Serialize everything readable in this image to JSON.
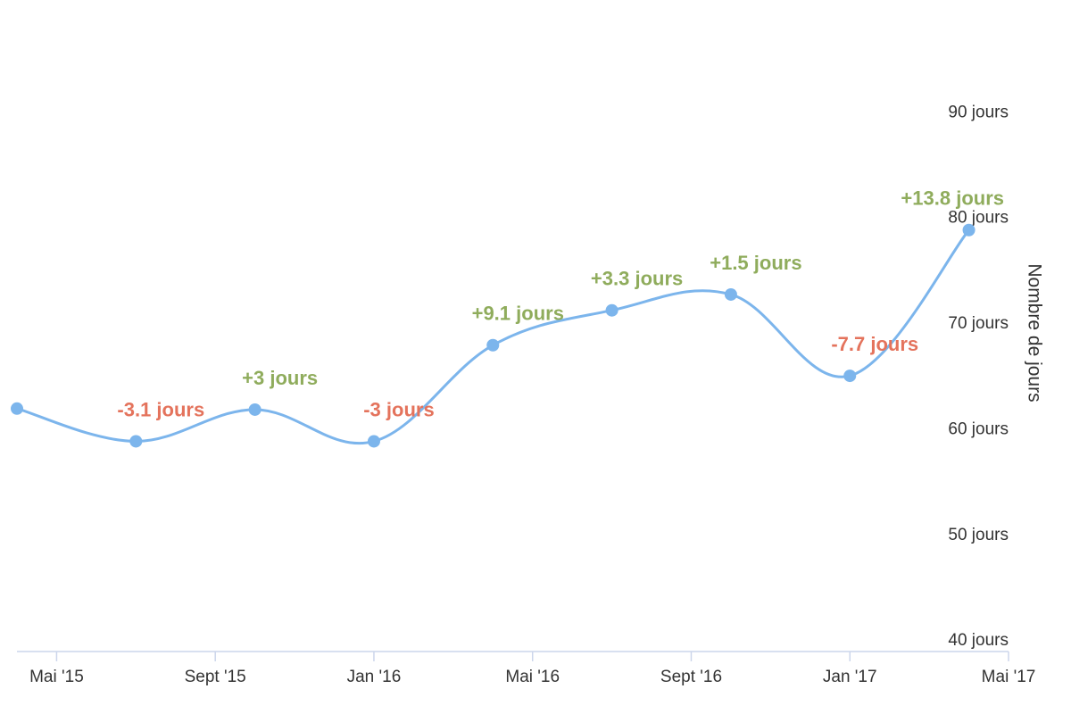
{
  "chart_data": {
    "type": "line",
    "x": [
      "2015-04",
      "2015-07",
      "2015-10",
      "2016-01",
      "2016-04",
      "2016-07",
      "2016-10",
      "2017-01",
      "2017-04"
    ],
    "series": [
      {
        "color": "#7cb5ec",
        "values": [
          62.0,
          58.9,
          61.9,
          58.9,
          68.0,
          71.3,
          72.8,
          65.1,
          78.9
        ]
      }
    ],
    "changes": {
      "values": [
        null,
        -3.1,
        3,
        -3,
        9.1,
        3.3,
        1.5,
        -7.7,
        13.8
      ],
      "value_labels": [
        null,
        "-3.1 jours",
        "+3 jours",
        "-3 jours",
        "+9.1 jours",
        "+3.3 jours",
        "+1.5 jours",
        "-7.7 jours",
        "+13.8 jours"
      ],
      "positive_color": "#8fac5c",
      "negative_color": "#e4735c"
    },
    "xlim": [
      "2015-04",
      "2017-05"
    ],
    "xticks": [
      {
        "value": "2015-05",
        "label": "Mai '15"
      },
      {
        "value": "2015-09",
        "label": "Sept '15"
      },
      {
        "value": "2016-01",
        "label": "Jan '16"
      },
      {
        "value": "2016-05",
        "label": "Mai '16"
      },
      {
        "value": "2016-09",
        "label": "Sept '16"
      },
      {
        "value": "2017-01",
        "label": "Jan '17"
      },
      {
        "value": "2017-05",
        "label": "Mai '17"
      }
    ],
    "ylim": [
      39,
      100
    ],
    "yticks": [
      {
        "value": 40,
        "label": "40 jours"
      },
      {
        "value": 50,
        "label": "50 jours"
      },
      {
        "value": 60,
        "label": "60 jours"
      },
      {
        "value": 70,
        "label": "70 jours"
      },
      {
        "value": 80,
        "label": "80 jours"
      },
      {
        "value": 90,
        "label": "90 jours"
      }
    ],
    "y_axis_label": "Nombre de jours",
    "y_axis_side": "right",
    "grid": false
  }
}
